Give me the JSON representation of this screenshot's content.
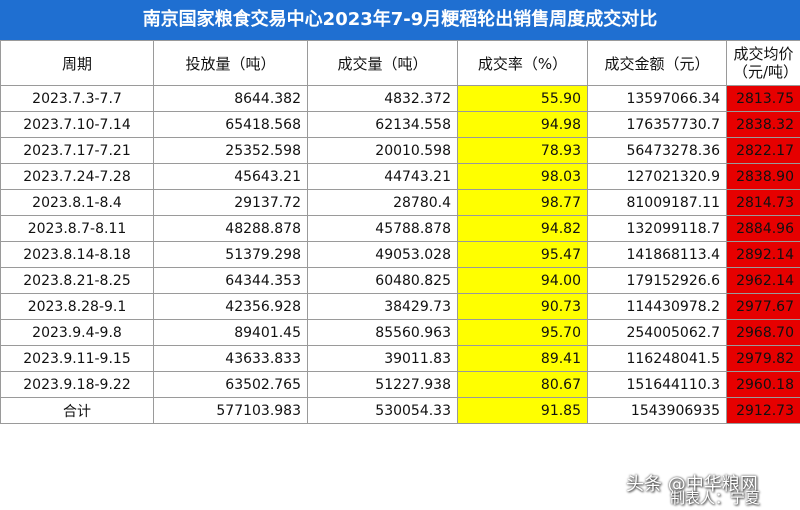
{
  "title": "南京国家粮食交易中心2023年7-9月粳稻轮出销售周度成交对比",
  "colors": {
    "title_bg": "#1f6fd1",
    "rate_bg": "#ffff00",
    "rate_text": "#e00000",
    "price_bg": "#e60000"
  },
  "headers": [
    "周期",
    "投放量（吨）",
    "成交量（吨）",
    "成交率（%）",
    "成交金额（元）",
    "成交均价（元/吨）"
  ],
  "rows": [
    {
      "period": "2023.7.3-7.7",
      "supply": "8644.382",
      "volume": "4832.372",
      "rate": "55.90",
      "amount": "13597066.34",
      "price": "2813.75"
    },
    {
      "period": "2023.7.10-7.14",
      "supply": "65418.568",
      "volume": "62134.558",
      "rate": "94.98",
      "amount": "176357730.7",
      "price": "2838.32"
    },
    {
      "period": "2023.7.17-7.21",
      "supply": "25352.598",
      "volume": "20010.598",
      "rate": "78.93",
      "amount": "56473278.36",
      "price": "2822.17"
    },
    {
      "period": "2023.7.24-7.28",
      "supply": "45643.21",
      "volume": "44743.21",
      "rate": "98.03",
      "amount": "127021320.9",
      "price": "2838.90"
    },
    {
      "period": "2023.8.1-8.4",
      "supply": "29137.72",
      "volume": "28780.4",
      "rate": "98.77",
      "amount": "81009187.11",
      "price": "2814.73"
    },
    {
      "period": "2023.8.7-8.11",
      "supply": "48288.878",
      "volume": "45788.878",
      "rate": "94.82",
      "amount": "132099118.7",
      "price": "2884.96"
    },
    {
      "period": "2023.8.14-8.18",
      "supply": "51379.298",
      "volume": "49053.028",
      "rate": "95.47",
      "amount": "141868113.4",
      "price": "2892.14"
    },
    {
      "period": "2023.8.21-8.25",
      "supply": "64344.353",
      "volume": "60480.825",
      "rate": "94.00",
      "amount": "179152926.6",
      "price": "2962.14"
    },
    {
      "period": "2023.8.28-9.1",
      "supply": "42356.928",
      "volume": "38429.73",
      "rate": "90.73",
      "amount": "114430978.2",
      "price": "2977.67"
    },
    {
      "period": "2023.9.4-9.8",
      "supply": "89401.45",
      "volume": "85560.963",
      "rate": "95.70",
      "amount": "254005062.7",
      "price": "2968.70"
    },
    {
      "period": "2023.9.11-9.15",
      "supply": "43633.833",
      "volume": "39011.83",
      "rate": "89.41",
      "amount": "116248041.5",
      "price": "2979.82"
    },
    {
      "period": "2023.9.18-9.22",
      "supply": "63502.765",
      "volume": "51227.938",
      "rate": "80.67",
      "amount": "151644110.3",
      "price": "2960.18"
    },
    {
      "period": "合计",
      "supply": "577103.983",
      "volume": "530054.33",
      "rate": "91.85",
      "amount": "1543906935",
      "price": "2912.73"
    }
  ],
  "watermark": {
    "line1": "头条 @中华粮网",
    "line2": "制表人：宁夏"
  }
}
